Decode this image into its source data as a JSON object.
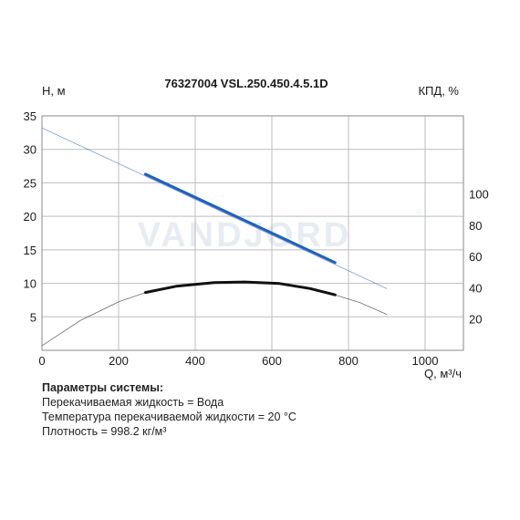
{
  "chart_data": {
    "type": "line",
    "title": "76327004 VSL.250.450.4.5.1D",
    "y_left_label": "H, м",
    "y_right_label": "КПД, %",
    "xlabel": "Q, м³/ч",
    "watermark": "VANDJORD",
    "xlim": [
      0,
      1100
    ],
    "ylim": [
      0,
      35
    ],
    "y2lim": [
      0,
      150
    ],
    "x_ticks": [
      0,
      200,
      400,
      600,
      800,
      1000
    ],
    "y_ticks": [
      5,
      10,
      15,
      20,
      25,
      30,
      35
    ],
    "y2_ticks": [
      20,
      40,
      60,
      80,
      100
    ],
    "grid": true,
    "series": [
      {
        "key": "head",
        "axis": "left",
        "color": "#1f5fc0",
        "full": {
          "x": [
            0,
            900
          ],
          "y": [
            33.2,
            9.2
          ]
        },
        "operating": {
          "x": [
            270,
            765
          ],
          "y": [
            26.3,
            13.1
          ]
        }
      },
      {
        "key": "efficiency",
        "axis": "right",
        "color": "#111111",
        "full": {
          "x": [
            0,
            100,
            200,
            270,
            350,
            450,
            530,
            620,
            700,
            765,
            830,
            900
          ],
          "y": [
            3,
            19,
            31,
            37,
            41,
            43.3,
            43.7,
            42.7,
            39.5,
            35.5,
            30.5,
            23
          ]
        },
        "operating": {
          "x": [
            270,
            350,
            450,
            530,
            620,
            700,
            765
          ],
          "y": [
            37,
            41,
            43.3,
            43.7,
            42.7,
            39.5,
            35.5
          ]
        }
      }
    ]
  },
  "params": {
    "header": "Параметры системы:",
    "lines": [
      "Перекачиваемая жидкость = Вода",
      "Температура перекачиваемой жидкости = 20 °C",
      "Плотность = 998.2 кг/м³"
    ]
  }
}
